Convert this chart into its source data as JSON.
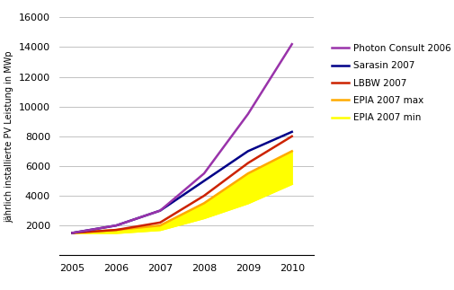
{
  "years": [
    2005,
    2006,
    2007,
    2008,
    2009,
    2010
  ],
  "photon_consult": [
    1500,
    2000,
    3000,
    5500,
    9500,
    14200
  ],
  "sarasin": [
    1500,
    2000,
    3000,
    5000,
    7000,
    8300
  ],
  "lbbw": [
    1500,
    1700,
    2200,
    4000,
    6200,
    8000
  ],
  "epia_max": [
    1500,
    1700,
    2000,
    3500,
    5500,
    7000
  ],
  "epia_min": [
    1500,
    1500,
    1700,
    2500,
    3500,
    4800
  ],
  "photon_color": "#9933AA",
  "sarasin_color": "#000088",
  "lbbw_color": "#CC2200",
  "epia_max_color": "#FFAA00",
  "epia_min_color": "#FFFF00",
  "fill_color": "#FFFF00",
  "ylabel": "jährlich installierte PV Leistung in MWp",
  "ylim": [
    0,
    16000
  ],
  "yticks": [
    0,
    2000,
    4000,
    6000,
    8000,
    10000,
    12000,
    14000,
    16000
  ],
  "xlim": [
    2004.7,
    2010.5
  ],
  "bg_color": "#ffffff",
  "grid_color": "#aaaaaa",
  "legend_labels": [
    "Photon Consult 2006",
    "Sarasin 2007",
    "LBBW 2007",
    "EPIA 2007 max",
    "EPIA 2007 min"
  ],
  "figsize": [
    5.06,
    3.23
  ],
  "dpi": 100
}
